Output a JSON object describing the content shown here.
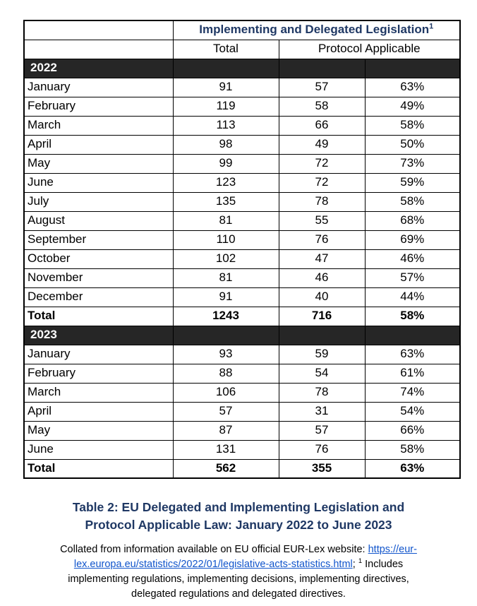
{
  "table": {
    "title": "Implementing and Delegated Legislation",
    "title_marker": "1",
    "col_total": "Total",
    "col_protocol": "Protocol Applicable",
    "sections": [
      {
        "year": "2022",
        "rows": [
          {
            "month": "January",
            "total": "91",
            "protocol": "57",
            "pct": "63%"
          },
          {
            "month": "February",
            "total": "119",
            "protocol": "58",
            "pct": "49%"
          },
          {
            "month": "March",
            "total": "113",
            "protocol": "66",
            "pct": "58%"
          },
          {
            "month": "April",
            "total": "98",
            "protocol": "49",
            "pct": "50%"
          },
          {
            "month": "May",
            "total": "99",
            "protocol": "72",
            "pct": "73%"
          },
          {
            "month": "June",
            "total": "123",
            "protocol": "72",
            "pct": "59%"
          },
          {
            "month": "July",
            "total": "135",
            "protocol": "78",
            "pct": "58%"
          },
          {
            "month": "August",
            "total": "81",
            "protocol": "55",
            "pct": "68%"
          },
          {
            "month": "September",
            "total": "110",
            "protocol": "76",
            "pct": "69%"
          },
          {
            "month": "October",
            "total": "102",
            "protocol": "47",
            "pct": "46%"
          },
          {
            "month": "November",
            "total": "81",
            "protocol": "46",
            "pct": "57%"
          },
          {
            "month": "December",
            "total": "91",
            "protocol": "40",
            "pct": "44%"
          }
        ],
        "total_row": {
          "label": "Total",
          "total": "1243",
          "protocol": "716",
          "pct": "58%"
        }
      },
      {
        "year": "2023",
        "rows": [
          {
            "month": "January",
            "total": "93",
            "protocol": "59",
            "pct": "63%"
          },
          {
            "month": "February",
            "total": "88",
            "protocol": "54",
            "pct": "61%"
          },
          {
            "month": "March",
            "total": "106",
            "protocol": "78",
            "pct": "74%"
          },
          {
            "month": "April",
            "total": "57",
            "protocol": "31",
            "pct": "54%"
          },
          {
            "month": "May",
            "total": "87",
            "protocol": "57",
            "pct": "66%"
          },
          {
            "month": "June",
            "total": "131",
            "protocol": "76",
            "pct": "58%"
          }
        ],
        "total_row": {
          "label": "Total",
          "total": "562",
          "protocol": "355",
          "pct": "63%"
        }
      }
    ]
  },
  "caption": {
    "line1": "Table 2: EU Delegated and Implementing Legislation and",
    "line2": "Protocol Applicable Law: January 2022 to June 2023"
  },
  "footnote": {
    "prefix": "Collated from information available on EU official EUR-Lex website: ",
    "link_full": "https://eur-lex.europa.eu/statistics/2022/01/legislative-acts-statistics.html",
    "link_part1": "https://eur-",
    "link_part2": "lex.europa.eu/statistics/2022/01/legislative-acts-statistics.html",
    "after_link": "; ",
    "marker": "1",
    "line2_tail": " Includes",
    "line3": "implementing regulations, implementing decisions, implementing directives,",
    "line4": "delegated regulations and delegated directives."
  },
  "colors": {
    "heading_navy": "#1f3864",
    "link_blue": "#1155cc",
    "band_background": "#262626",
    "band_text": "#ffffff",
    "border_black": "#000000"
  }
}
